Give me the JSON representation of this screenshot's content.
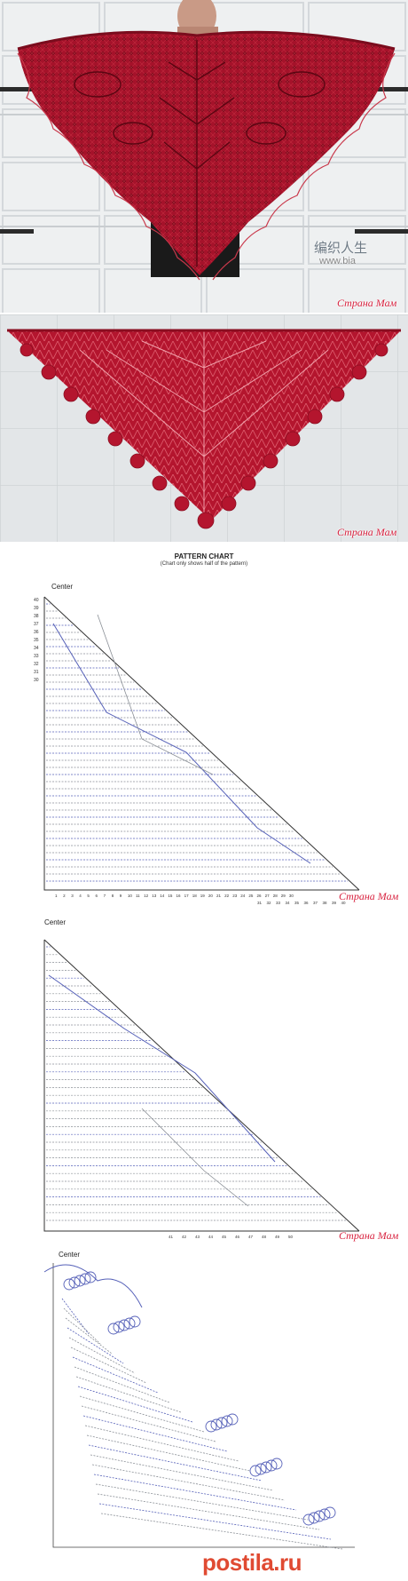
{
  "watermarks": {
    "photo1_sign": "编织人生",
    "photo1_url": "www.bia",
    "site": "Страна Мам"
  },
  "chart1": {
    "title": "PATTERN  CHART",
    "subtitle": "(Chart only shows half of the pattern)",
    "center_label": "Center",
    "row_numbers": [
      "40",
      "39",
      "38",
      "37",
      "36",
      "35",
      "34",
      "33",
      "32",
      "31",
      "30"
    ],
    "bottom_numbers_row1": [
      "1",
      "2",
      "3",
      "4",
      "5",
      "6",
      "7",
      "8",
      "9",
      "10",
      "11",
      "12",
      "13",
      "14",
      "15",
      "16",
      "17",
      "18",
      "19",
      "20",
      "21",
      "22",
      "23",
      "24",
      "25",
      "26",
      "27",
      "28",
      "29",
      "30"
    ],
    "bottom_numbers_row2": [
      "31",
      "32",
      "33",
      "34",
      "35",
      "36",
      "37",
      "38",
      "39",
      "40"
    ]
  },
  "chart2": {
    "center_label": "Center",
    "bottom_numbers": [
      "41",
      "42",
      "43",
      "44",
      "45",
      "46",
      "47",
      "48",
      "49",
      "50"
    ]
  },
  "chart3": {
    "center_label": "Center",
    "footer_logo": "postila.ru"
  },
  "colors": {
    "shawl": "#a5122a",
    "chart_blue": "#5560b8",
    "chart_gray": "#8a8f96",
    "watermark": "#d8223f"
  }
}
